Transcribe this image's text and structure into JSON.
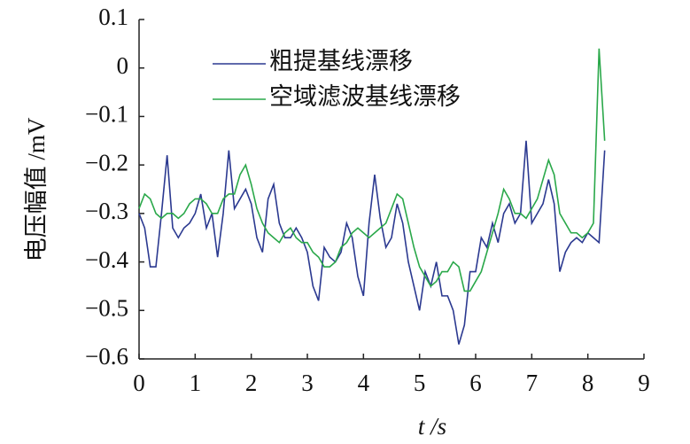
{
  "chart_data": {
    "type": "line",
    "xlabel": "t /s",
    "ylabel": "电压幅值 /mV",
    "x": [
      0,
      0.1,
      0.2,
      0.3,
      0.4,
      0.5,
      0.6,
      0.7,
      0.8,
      0.9,
      1,
      1.1,
      1.2,
      1.3,
      1.4,
      1.5,
      1.6,
      1.7,
      1.8,
      1.9,
      2,
      2.1,
      2.2,
      2.3,
      2.4,
      2.5,
      2.6,
      2.7,
      2.8,
      2.9,
      3,
      3.1,
      3.2,
      3.3,
      3.4,
      3.5,
      3.6,
      3.7,
      3.8,
      3.9,
      4,
      4.1,
      4.2,
      4.3,
      4.4,
      4.5,
      4.6,
      4.7,
      4.8,
      4.9,
      5,
      5.1,
      5.2,
      5.3,
      5.4,
      5.5,
      5.6,
      5.7,
      5.8,
      5.9,
      6,
      6.1,
      6.2,
      6.3,
      6.4,
      6.5,
      6.6,
      6.7,
      6.8,
      6.9,
      7,
      7.1,
      7.2,
      7.3,
      7.4,
      7.5,
      7.6,
      7.7,
      7.8,
      7.9,
      8,
      8.1,
      8.2,
      8.3
    ],
    "series": [
      {
        "name": "粗提基线漂移",
        "color": "#2b3990",
        "values": [
          -0.3,
          -0.33,
          -0.41,
          -0.41,
          -0.3,
          -0.18,
          -0.33,
          -0.35,
          -0.33,
          -0.32,
          -0.3,
          -0.26,
          -0.33,
          -0.3,
          -0.39,
          -0.3,
          -0.17,
          -0.29,
          -0.27,
          -0.25,
          -0.28,
          -0.35,
          -0.38,
          -0.27,
          -0.24,
          -0.32,
          -0.35,
          -0.35,
          -0.33,
          -0.35,
          -0.38,
          -0.45,
          -0.48,
          -0.37,
          -0.39,
          -0.4,
          -0.38,
          -0.32,
          -0.35,
          -0.43,
          -0.47,
          -0.32,
          -0.22,
          -0.31,
          -0.37,
          -0.35,
          -0.28,
          -0.32,
          -0.4,
          -0.45,
          -0.5,
          -0.42,
          -0.45,
          -0.4,
          -0.47,
          -0.47,
          -0.5,
          -0.57,
          -0.53,
          -0.42,
          -0.42,
          -0.35,
          -0.37,
          -0.32,
          -0.36,
          -0.3,
          -0.28,
          -0.32,
          -0.3,
          -0.15,
          -0.32,
          -0.3,
          -0.28,
          -0.23,
          -0.28,
          -0.42,
          -0.38,
          -0.36,
          -0.35,
          -0.36,
          -0.34,
          -0.35,
          -0.36,
          -0.17
        ]
      },
      {
        "name": "空域滤波基线漂移",
        "color": "#2aa84a",
        "values": [
          -0.29,
          -0.26,
          -0.27,
          -0.3,
          -0.31,
          -0.3,
          -0.3,
          -0.31,
          -0.3,
          -0.28,
          -0.27,
          -0.27,
          -0.28,
          -0.3,
          -0.3,
          -0.27,
          -0.26,
          -0.26,
          -0.22,
          -0.2,
          -0.24,
          -0.29,
          -0.32,
          -0.34,
          -0.35,
          -0.36,
          -0.34,
          -0.33,
          -0.35,
          -0.36,
          -0.36,
          -0.38,
          -0.39,
          -0.41,
          -0.41,
          -0.4,
          -0.37,
          -0.36,
          -0.34,
          -0.33,
          -0.34,
          -0.35,
          -0.34,
          -0.33,
          -0.32,
          -0.29,
          -0.26,
          -0.27,
          -0.32,
          -0.37,
          -0.41,
          -0.43,
          -0.45,
          -0.44,
          -0.42,
          -0.42,
          -0.4,
          -0.41,
          -0.46,
          -0.46,
          -0.44,
          -0.42,
          -0.38,
          -0.34,
          -0.3,
          -0.25,
          -0.27,
          -0.3,
          -0.3,
          -0.31,
          -0.29,
          -0.27,
          -0.23,
          -0.19,
          -0.22,
          -0.3,
          -0.32,
          -0.34,
          -0.34,
          -0.35,
          -0.34,
          -0.32,
          0.04,
          -0.15
        ]
      }
    ],
    "xlim": [
      0,
      9
    ],
    "xticks": [
      0,
      1,
      2,
      3,
      4,
      5,
      6,
      7,
      8,
      9
    ],
    "ylim": [
      -0.6,
      0.1
    ],
    "yticks": [
      {
        "value": -0.6,
        "label": "−0.6"
      },
      {
        "value": -0.5,
        "label": "−0.5"
      },
      {
        "value": -0.4,
        "label": "−0.4"
      },
      {
        "value": -0.3,
        "label": "−0.3"
      },
      {
        "value": -0.2,
        "label": "−0.2"
      },
      {
        "value": -0.1,
        "label": "−0.1"
      },
      0,
      0.1
    ],
    "legend": "upper left",
    "grid": false
  }
}
